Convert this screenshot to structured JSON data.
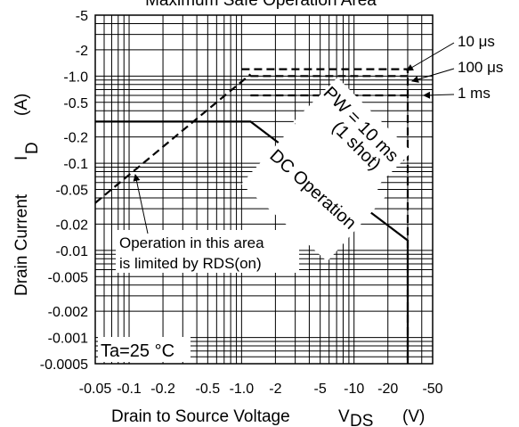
{
  "chart_data": {
    "type": "line",
    "title": "Maximum Safe Operation Area",
    "xlabel": "Drain to Source Voltage",
    "xlabel_symbol": "V",
    "xlabel_sub": "DS",
    "xlabel_unit": "(V)",
    "ylabel": "Drain Current",
    "ylabel_symbol": "I",
    "ylabel_sub": "D",
    "ylabel_unit": "(A)",
    "x_scale": "log",
    "y_scale": "log",
    "xlim": [
      -0.05,
      -50
    ],
    "ylim": [
      -0.0005,
      -5
    ],
    "grid": true,
    "x_ticks": [
      {
        "v": 0.05,
        "label": "-0.05"
      },
      {
        "v": 0.1,
        "label": "-0.1"
      },
      {
        "v": 0.2,
        "label": "-0.2"
      },
      {
        "v": 0.5,
        "label": "-0.5"
      },
      {
        "v": 1,
        "label": "-1.0"
      },
      {
        "v": 2,
        "label": "-2"
      },
      {
        "v": 5,
        "label": "-5"
      },
      {
        "v": 10,
        "label": "-10"
      },
      {
        "v": 20,
        "label": "-20"
      },
      {
        "v": 50,
        "label": "-50"
      }
    ],
    "y_ticks": [
      {
        "v": 5,
        "label": "-5"
      },
      {
        "v": 2,
        "label": "-2"
      },
      {
        "v": 1,
        "label": "-1.0"
      },
      {
        "v": 0.5,
        "label": "-0.5"
      },
      {
        "v": 0.2,
        "label": "-0.2"
      },
      {
        "v": 0.1,
        "label": "-0.1"
      },
      {
        "v": 0.05,
        "label": "-0.05"
      },
      {
        "v": 0.02,
        "label": "-0.02"
      },
      {
        "v": 0.01,
        "label": "-0.01"
      },
      {
        "v": 0.005,
        "label": "-0.005"
      },
      {
        "v": 0.002,
        "label": "-0.002"
      },
      {
        "v": 0.001,
        "label": "-0.001"
      },
      {
        "v": 0.0005,
        "label": "-0.0005"
      }
    ],
    "series": [
      {
        "name": "DC Operation",
        "style": "solid",
        "points": [
          [
            -0.05,
            -0.3
          ],
          [
            -1.2,
            -0.3
          ],
          [
            -30,
            -0.013
          ],
          [
            -30,
            -0.0005
          ]
        ]
      },
      {
        "name": "PW = 10 ms (1 shot)",
        "style": "dashed",
        "points": [
          [
            -4.8,
            -0.6
          ],
          [
            -30,
            -0.1
          ]
        ]
      },
      {
        "name": "RDS(on) limit",
        "style": "dashed",
        "points": [
          [
            -0.05,
            -0.035
          ],
          [
            -1.2,
            -1.05
          ]
        ]
      },
      {
        "name": "10 μs",
        "style": "dashed",
        "points": [
          [
            -1.0,
            -1.2
          ],
          [
            -30,
            -1.2
          ],
          [
            -30,
            -0.0005
          ]
        ]
      },
      {
        "name": "100 μs",
        "style": "dashed",
        "points": [
          [
            -1.2,
            -1.0
          ],
          [
            -30,
            -1.0
          ]
        ]
      },
      {
        "name": "1 ms",
        "style": "dashed",
        "points": [
          [
            -1.2,
            -0.6
          ],
          [
            -30,
            -0.6
          ]
        ]
      }
    ],
    "labels": {
      "pulse_10us": "10 μs",
      "pulse_100us": "100 μs",
      "pulse_1ms": "1 ms",
      "pw_line1": "PW = 10 ms",
      "pw_line2": "(1 shot)",
      "dc": "DC Operation",
      "rds_line1": "Operation in this area",
      "rds_line2": "is limited by RDS(on)",
      "ta": "Ta=25 °C"
    }
  }
}
